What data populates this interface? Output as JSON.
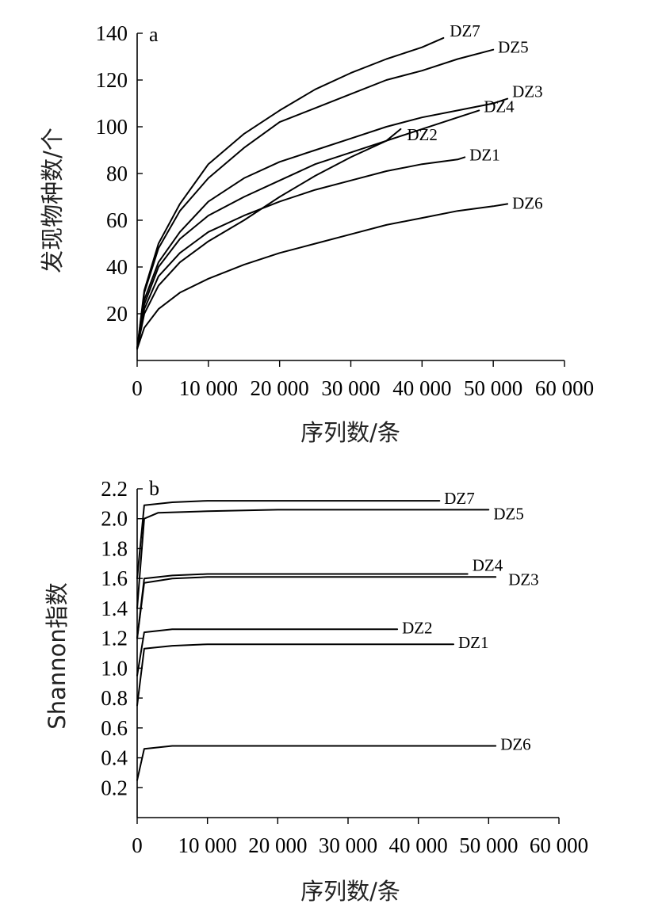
{
  "chart_data": [
    {
      "type": "line",
      "panel": "a",
      "xlabel": "序列数/条",
      "ylabel": "发现物种数/个",
      "xlim": [
        0,
        60000
      ],
      "ylim": [
        0,
        140
      ],
      "xticks": [
        0,
        10000,
        20000,
        30000,
        40000,
        50000,
        60000
      ],
      "xtick_labels": [
        "0",
        "10 000",
        "20 000",
        "30 000",
        "40 000",
        "50 000",
        "60 000"
      ],
      "yticks": [
        20,
        40,
        60,
        80,
        100,
        120,
        140
      ],
      "ytick_labels": [
        "20",
        "40",
        "60",
        "80",
        "100",
        "120",
        "140"
      ],
      "grid": false,
      "series": [
        {
          "name": "DZ7",
          "x": [
            0,
            1000,
            3000,
            6000,
            10000,
            15000,
            20000,
            25000,
            30000,
            35000,
            40000,
            43000
          ],
          "y": [
            5,
            30,
            50,
            67,
            84,
            97,
            107,
            116,
            123,
            129,
            134,
            138
          ]
        },
        {
          "name": "DZ5",
          "x": [
            0,
            1000,
            3000,
            6000,
            10000,
            15000,
            20000,
            25000,
            30000,
            35000,
            40000,
            45000,
            50000
          ],
          "y": [
            5,
            29,
            48,
            64,
            78,
            91,
            102,
            108,
            114,
            120,
            124,
            129,
            133
          ]
        },
        {
          "name": "DZ3",
          "x": [
            0,
            1000,
            3000,
            6000,
            10000,
            15000,
            20000,
            25000,
            30000,
            35000,
            40000,
            45000,
            50000,
            52000
          ],
          "y": [
            5,
            26,
            42,
            55,
            68,
            78,
            85,
            90,
            95,
            100,
            104,
            107,
            110,
            112
          ]
        },
        {
          "name": "DZ4",
          "x": [
            0,
            1000,
            3000,
            6000,
            10000,
            15000,
            20000,
            25000,
            30000,
            35000,
            40000,
            45000,
            48000
          ],
          "y": [
            5,
            24,
            40,
            52,
            62,
            70,
            77,
            84,
            89,
            94,
            99,
            104,
            107
          ]
        },
        {
          "name": "DZ2",
          "x": [
            0,
            1000,
            3000,
            6000,
            10000,
            15000,
            20000,
            25000,
            30000,
            35000,
            37000
          ],
          "y": [
            5,
            20,
            32,
            42,
            51,
            60,
            70,
            79,
            87,
            94,
            99
          ]
        },
        {
          "name": "DZ1",
          "x": [
            0,
            1000,
            3000,
            6000,
            10000,
            15000,
            20000,
            25000,
            30000,
            35000,
            40000,
            45000,
            46000
          ],
          "y": [
            5,
            22,
            36,
            46,
            55,
            62,
            68,
            73,
            77,
            81,
            84,
            86,
            87
          ]
        },
        {
          "name": "DZ6",
          "x": [
            0,
            1000,
            3000,
            6000,
            10000,
            15000,
            20000,
            25000,
            30000,
            35000,
            40000,
            45000,
            50000,
            52000
          ],
          "y": [
            5,
            14,
            22,
            29,
            35,
            41,
            46,
            50,
            54,
            58,
            61,
            64,
            66,
            67
          ]
        }
      ]
    },
    {
      "type": "line",
      "panel": "b",
      "xlabel": "序列数/条",
      "ylabel": "Shannon指数",
      "xlim": [
        0,
        60000
      ],
      "ylim": [
        0,
        2.2
      ],
      "xticks": [
        0,
        10000,
        20000,
        30000,
        40000,
        50000,
        60000
      ],
      "xtick_labels": [
        "0",
        "10 000",
        "20 000",
        "30 000",
        "40 000",
        "50 000",
        "60 000"
      ],
      "yticks": [
        0.2,
        0.4,
        0.6,
        0.8,
        1.0,
        1.2,
        1.4,
        1.6,
        1.8,
        2.0,
        2.2
      ],
      "ytick_labels": [
        "0.2",
        "0.4",
        "0.6",
        "0.8",
        "1.0",
        "1.2",
        "1.4",
        "1.6",
        "1.8",
        "2.0",
        "2.2"
      ],
      "grid": false,
      "series": [
        {
          "name": "DZ7",
          "x": [
            0,
            1000,
            5000,
            10000,
            20000,
            30000,
            40000,
            43000
          ],
          "y": [
            1.6,
            2.09,
            2.11,
            2.12,
            2.12,
            2.12,
            2.12,
            2.12
          ]
        },
        {
          "name": "DZ5",
          "x": [
            0,
            1000,
            3000,
            10000,
            20000,
            30000,
            40000,
            50000
          ],
          "y": [
            1.4,
            2.0,
            2.04,
            2.05,
            2.06,
            2.06,
            2.06,
            2.06
          ]
        },
        {
          "name": "DZ4",
          "x": [
            0,
            1000,
            5000,
            10000,
            20000,
            30000,
            40000,
            47000
          ],
          "y": [
            1.2,
            1.6,
            1.62,
            1.63,
            1.63,
            1.63,
            1.63,
            1.63
          ]
        },
        {
          "name": "DZ3",
          "x": [
            0,
            1000,
            5000,
            10000,
            20000,
            30000,
            40000,
            51000
          ],
          "y": [
            1.2,
            1.57,
            1.6,
            1.61,
            1.61,
            1.61,
            1.61,
            1.61
          ]
        },
        {
          "name": "DZ2",
          "x": [
            0,
            1000,
            5000,
            10000,
            20000,
            30000,
            37000
          ],
          "y": [
            0.95,
            1.24,
            1.26,
            1.26,
            1.26,
            1.26,
            1.26
          ]
        },
        {
          "name": "DZ1",
          "x": [
            0,
            1000,
            5000,
            10000,
            20000,
            30000,
            40000,
            45000
          ],
          "y": [
            0.75,
            1.13,
            1.15,
            1.16,
            1.16,
            1.16,
            1.16,
            1.16
          ]
        },
        {
          "name": "DZ6",
          "x": [
            0,
            1000,
            5000,
            10000,
            20000,
            30000,
            40000,
            51000
          ],
          "y": [
            0.25,
            0.46,
            0.48,
            0.48,
            0.48,
            0.48,
            0.48,
            0.48
          ]
        }
      ]
    }
  ]
}
